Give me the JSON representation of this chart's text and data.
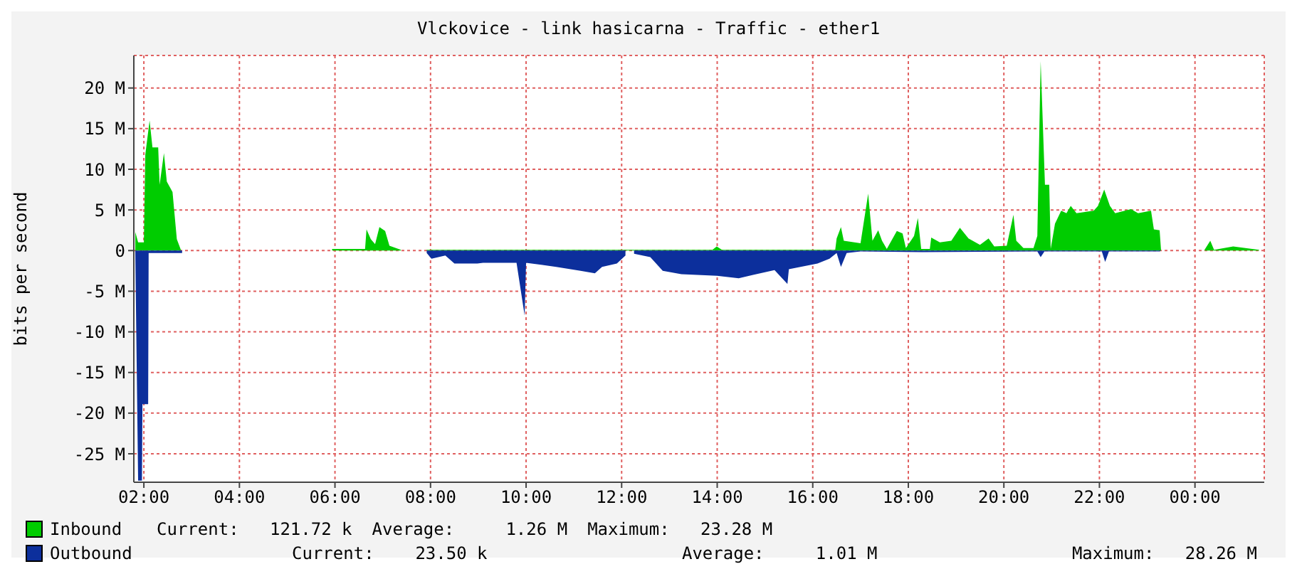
{
  "chart_data": {
    "type": "area",
    "title": "Vlckovice - link hasicarna - Traffic - ether1",
    "ylabel": "bits per second",
    "xlim": [
      1.79,
      25.45
    ],
    "xticks": [
      {
        "value": 2,
        "label": "02:00"
      },
      {
        "value": 4,
        "label": "04:00"
      },
      {
        "value": 6,
        "label": "06:00"
      },
      {
        "value": 8,
        "label": "08:00"
      },
      {
        "value": 10,
        "label": "10:00"
      },
      {
        "value": 12,
        "label": "12:00"
      },
      {
        "value": 14,
        "label": "14:00"
      },
      {
        "value": 16,
        "label": "16:00"
      },
      {
        "value": 18,
        "label": "18:00"
      },
      {
        "value": 20,
        "label": "20:00"
      },
      {
        "value": 22,
        "label": "22:00"
      },
      {
        "value": 24,
        "label": "00:00"
      }
    ],
    "ylim": [
      -28.5,
      24
    ],
    "yticks": [
      {
        "value": -25,
        "label": "-25 M"
      },
      {
        "value": -20,
        "label": "-20 M"
      },
      {
        "value": -15,
        "label": "-15 M"
      },
      {
        "value": -10,
        "label": "-10 M"
      },
      {
        "value": -5,
        "label": "-5 M"
      },
      0,
      {
        "value": 5,
        "label": "5 M"
      },
      {
        "value": 10,
        "label": "10 M"
      },
      {
        "value": 15,
        "label": "15 M"
      },
      {
        "value": 20,
        "label": "20 M"
      }
    ],
    "grid": true,
    "legend": "bottom",
    "annotations": [
      "Current:   121.72 k",
      "Average:     1.26 M",
      "Maximum:   23.28 M",
      "Current:    23.50 k",
      "Average:     1.01 M",
      "Maximum:   28.26 M"
    ],
    "series": [
      {
        "name": "Inbound",
        "color": "#00cc00",
        "x": [
          1.82,
          1.88,
          2.0,
          2.03,
          2.12,
          2.18,
          2.3,
          2.33,
          2.42,
          2.48,
          2.6,
          2.69,
          2.78,
          2.85,
          3.3,
          3.35,
          5.94,
          6.63,
          6.66,
          6.75,
          6.84,
          6.93,
          7.05,
          7.14,
          7.38,
          7.45,
          7.92,
          13.9,
          13.99,
          14.1,
          16.47,
          16.5,
          16.59,
          16.65,
          17.0,
          17.16,
          17.25,
          17.37,
          17.45,
          17.55,
          17.76,
          17.88,
          17.95,
          18.12,
          18.2,
          18.27,
          18.45,
          18.48,
          18.66,
          18.9,
          19.08,
          19.26,
          19.5,
          19.68,
          19.8,
          20.06,
          20.2,
          20.26,
          20.41,
          20.62,
          20.7,
          20.77,
          20.86,
          20.95,
          20.98,
          21.07,
          21.2,
          21.31,
          21.4,
          21.52,
          21.88,
          21.97,
          22.1,
          22.22,
          22.33,
          22.66,
          22.81,
          23.08,
          23.14,
          23.26,
          23.29,
          23.35,
          24.2,
          24.32,
          24.4,
          24.8,
          25.34
        ],
        "values": [
          2.3,
          1,
          1,
          11.8,
          16,
          12.7,
          12.7,
          8.1,
          12,
          8.5,
          7.2,
          1.4,
          0,
          null,
          null,
          null,
          0.2,
          0.2,
          2.6,
          1.4,
          0.8,
          2.9,
          2.4,
          0.6,
          0.1,
          null,
          0.1,
          0.1,
          0.5,
          0.1,
          0.1,
          1.5,
          2.9,
          1.2,
          0.9,
          7,
          1.2,
          2.5,
          1.2,
          0.2,
          2.4,
          2.1,
          0.3,
          1.8,
          4,
          0.2,
          0.2,
          1.6,
          1,
          1.2,
          2.8,
          1.5,
          0.7,
          1.5,
          0.5,
          0.6,
          4.4,
          1.2,
          0.3,
          0.3,
          1.8,
          23.3,
          8.1,
          8.1,
          0.2,
          3.3,
          4.9,
          4.6,
          5.5,
          4.6,
          4.9,
          5.5,
          7.5,
          5.5,
          4.6,
          5.1,
          4.6,
          4.9,
          2.6,
          2.5,
          0,
          null,
          0.1,
          1.2,
          0.1,
          0.5,
          0.1
        ]
      },
      {
        "name": "Outbound",
        "color": "#0c2f9c",
        "x": [
          1.82,
          1.88,
          1.96,
          1.97,
          2.09,
          2.1,
          2.8,
          2.85,
          7.92,
          8.02,
          8.31,
          8.5,
          8.98,
          9.1,
          9.8,
          9.97,
          10.0,
          10.63,
          11.14,
          11.44,
          11.59,
          11.9,
          12.08,
          12.14,
          12.26,
          12.6,
          12.86,
          13.25,
          14.0,
          14.45,
          14.75,
          15.2,
          15.47,
          15.5,
          16.1,
          16.35,
          16.5,
          16.59,
          16.71,
          17.0,
          18.3,
          20.7,
          20.77,
          20.85,
          22.05,
          22.12,
          22.2,
          23.26,
          23.29
        ],
        "values": [
          0,
          -28.3,
          -28.3,
          -18.9,
          -18.9,
          -0.3,
          -0.3,
          null,
          -0.3,
          -1,
          -0.6,
          -1.6,
          -1.6,
          -1.5,
          -1.5,
          -8,
          -1.5,
          -2,
          -2.5,
          -2.8,
          -2,
          -1.6,
          -0.6,
          null,
          -0.4,
          -0.8,
          -2.5,
          -2.9,
          -3.1,
          -3.4,
          -3,
          -2.4,
          -4.1,
          -2.3,
          -1.6,
          -1,
          -0.3,
          -2,
          -0.3,
          -0.1,
          -0.2,
          -0.1,
          -0.8,
          -0.1,
          -0.1,
          -1.4,
          -0.1,
          -0.1,
          0
        ]
      }
    ]
  }
}
